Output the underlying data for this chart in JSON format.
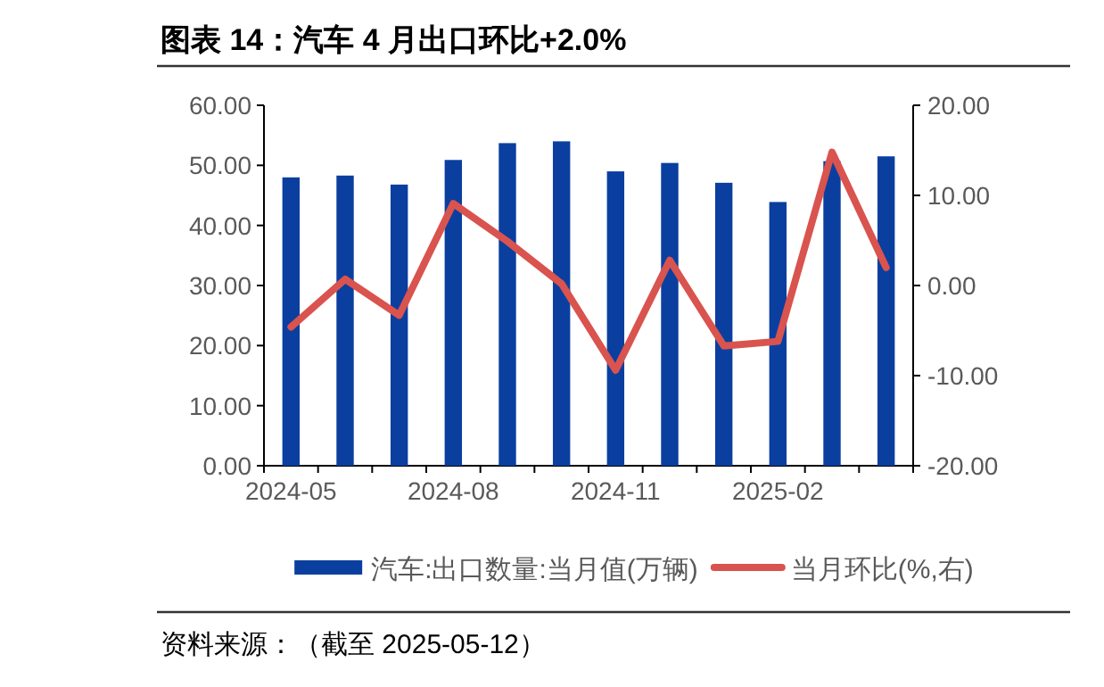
{
  "chart_data": {
    "type": "bar",
    "title": "图表 14：汽车 4 月出口环比+2.0%",
    "categories": [
      "2024-05",
      null,
      null,
      "2024-08",
      null,
      null,
      "2024-11",
      null,
      null,
      "2025-02",
      null,
      null
    ],
    "series": [
      {
        "name": "汽车:出口数量:当月值(万辆)",
        "color": "#0a3fa0",
        "values": [
          48.0,
          48.3,
          46.8,
          50.9,
          53.7,
          54.0,
          49.0,
          50.4,
          47.1,
          43.9,
          50.7,
          51.5
        ]
      },
      {
        "name": "当月环比(%,右)",
        "type": "line",
        "axis": "y2",
        "color": "#d9534f",
        "values": [
          -4.6,
          0.7,
          -3.3,
          9.1,
          4.9,
          0.2,
          -9.4,
          2.8,
          -6.7,
          -6.2,
          14.8,
          2.0
        ]
      }
    ],
    "ylim": [
      0,
      60
    ],
    "yticks": [
      {
        "value": 0,
        "label": "0.00"
      },
      {
        "value": 10,
        "label": "10.00"
      },
      {
        "value": 20,
        "label": "20.00"
      },
      {
        "value": 30,
        "label": "30.00"
      },
      {
        "value": 40,
        "label": "40.00"
      },
      {
        "value": 50,
        "label": "50.00"
      },
      {
        "value": 60,
        "label": "60.00"
      }
    ],
    "y2lim": [
      -20,
      20
    ],
    "y2ticks": [
      {
        "value": -20,
        "label": "-20.00"
      },
      {
        "value": -10,
        "label": "-10.00"
      },
      {
        "value": 0,
        "label": "0.00"
      },
      {
        "value": 10,
        "label": "10.00"
      },
      {
        "value": 20,
        "label": "20.00"
      }
    ],
    "legend": "bottom",
    "grid": false,
    "marker": "none",
    "annotations": [
      "资料来源：（截至 2025-05-12）"
    ]
  }
}
